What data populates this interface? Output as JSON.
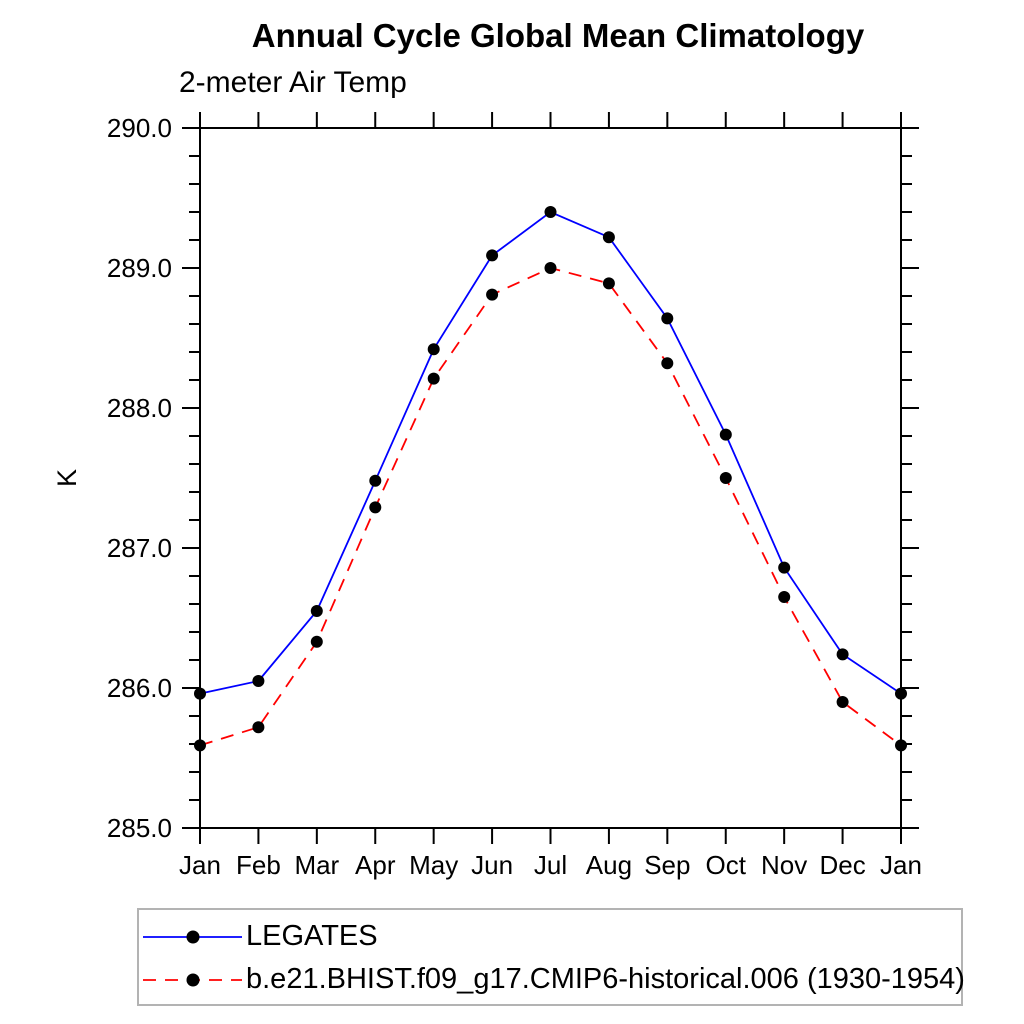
{
  "chart_data": {
    "type": "line",
    "title": "Annual Cycle Global Mean Climatology",
    "subtitle": "2-meter Air Temp",
    "ylabel": "K",
    "x_tick_labels": [
      "Jan",
      "Feb",
      "Mar",
      "Apr",
      "May",
      "Jun",
      "Jul",
      "Aug",
      "Sep",
      "Oct",
      "Nov",
      "Dec",
      "Jan"
    ],
    "ylim": [
      285.0,
      290.0
    ],
    "y_major_step": 1.0,
    "y_minor_step": 0.2,
    "y_major_tick_labels": [
      "285.0",
      "286.0",
      "287.0",
      "288.0",
      "289.0",
      "290.0"
    ],
    "grid": false,
    "legend_position": "bottom-left-box",
    "axis_color": "#000000",
    "legend_border_color": "#b3b3b3",
    "series": [
      {
        "name": "LEGATES",
        "color": "#0000ff",
        "line_style": "solid",
        "marker": "filled-circle",
        "marker_color": "#000000",
        "values": [
          285.96,
          286.05,
          286.55,
          287.48,
          288.42,
          289.09,
          289.4,
          289.22,
          288.64,
          287.81,
          286.86,
          286.24,
          285.96
        ]
      },
      {
        "name": "b.e21.BHIST.f09_g17.CMIP6-historical.006 (1930-1954)",
        "color": "#ff0000",
        "line_style": "dashed",
        "marker": "filled-circle",
        "marker_color": "#000000",
        "values": [
          285.59,
          285.72,
          286.33,
          287.29,
          288.21,
          288.81,
          289.0,
          288.89,
          288.32,
          287.5,
          286.65,
          285.9,
          285.59
        ]
      }
    ]
  }
}
